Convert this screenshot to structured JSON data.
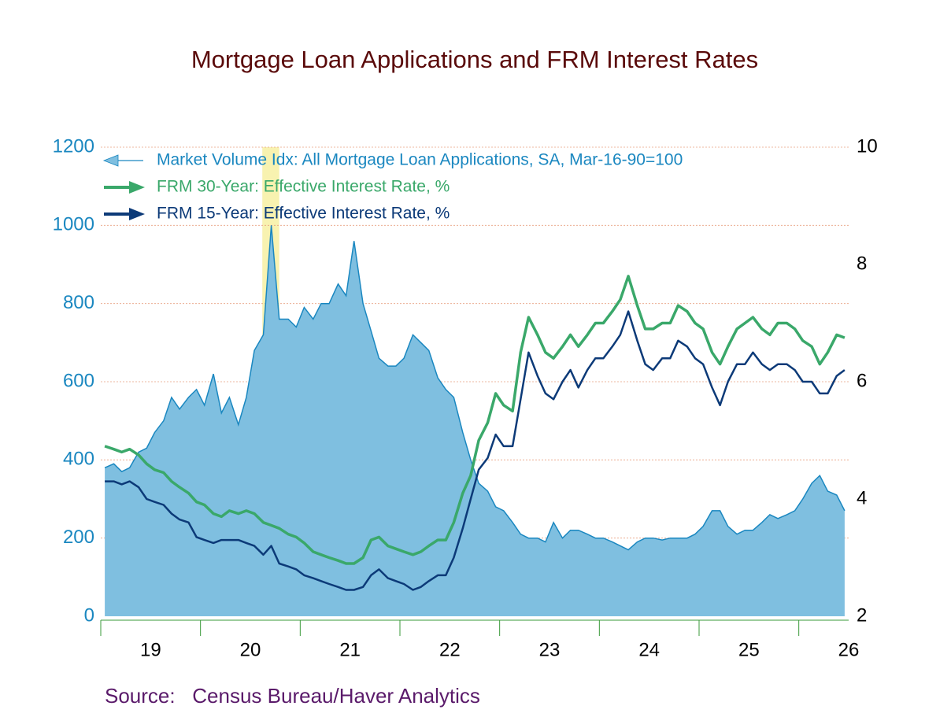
{
  "chart_data": {
    "type": "line-area",
    "title": "Mortgage Loan Applications and FRM Interest Rates",
    "source": "Source:   Census Bureau/Haver Analytics",
    "x": [
      2018.54,
      2018.63,
      2018.71,
      2018.79,
      2018.88,
      2018.96,
      2019.04,
      2019.13,
      2019.21,
      2019.29,
      2019.38,
      2019.46,
      2019.54,
      2019.63,
      2019.71,
      2019.79,
      2019.88,
      2019.96,
      2020.04,
      2020.13,
      2020.21,
      2020.29,
      2020.38,
      2020.46,
      2020.54,
      2020.63,
      2020.71,
      2020.79,
      2020.88,
      2020.96,
      2021.04,
      2021.13,
      2021.21,
      2021.29,
      2021.38,
      2021.46,
      2021.54,
      2021.63,
      2021.71,
      2021.79,
      2021.88,
      2021.96,
      2022.04,
      2022.13,
      2022.21,
      2022.29,
      2022.38,
      2022.46,
      2022.54,
      2022.63,
      2022.71,
      2022.79,
      2022.88,
      2022.96,
      2023.04,
      2023.13,
      2023.21,
      2023.29,
      2023.38,
      2023.46,
      2023.54,
      2023.63,
      2023.71,
      2023.79,
      2023.88,
      2023.96,
      2024.04,
      2024.13,
      2024.21,
      2024.29,
      2024.38,
      2024.46,
      2024.54,
      2024.63,
      2024.71,
      2024.79,
      2024.88,
      2024.96,
      2025.04,
      2025.13,
      2025.21,
      2025.29,
      2025.38,
      2025.46,
      2025.54,
      2025.63,
      2025.71,
      2025.79,
      2025.88,
      2025.96
    ],
    "series": [
      {
        "name": "Market Volume Idx: All Mortgage Loan Applications, SA, Mar-16-90=100",
        "color": "#1a87c0",
        "fill": "#7fbfe0",
        "axis": "y",
        "values": [
          380,
          390,
          370,
          380,
          420,
          430,
          470,
          500,
          560,
          530,
          560,
          580,
          540,
          620,
          520,
          560,
          490,
          560,
          680,
          720,
          1000,
          760,
          760,
          740,
          790,
          760,
          800,
          800,
          850,
          820,
          960,
          800,
          730,
          660,
          640,
          640,
          660,
          720,
          700,
          680,
          610,
          580,
          560,
          470,
          400,
          340,
          320,
          280,
          270,
          240,
          210,
          200,
          200,
          190,
          240,
          200,
          220,
          220,
          210,
          200,
          200,
          190,
          180,
          170,
          190,
          200,
          200,
          195,
          200,
          200,
          200,
          210,
          230,
          270,
          270,
          230,
          210,
          220,
          220,
          240,
          260,
          250,
          260,
          270,
          300,
          340,
          360,
          320,
          310,
          270
        ]
      },
      {
        "name": "FRM 30-Year: Effective Interest Rate, %",
        "color": "#3aa86a",
        "axis": "y2",
        "values": [
          4.9,
          4.85,
          4.8,
          4.85,
          4.75,
          4.6,
          4.5,
          4.45,
          4.3,
          4.2,
          4.1,
          3.95,
          3.9,
          3.75,
          3.7,
          3.8,
          3.75,
          3.8,
          3.75,
          3.6,
          3.55,
          3.5,
          3.4,
          3.35,
          3.25,
          3.1,
          3.05,
          3.0,
          2.95,
          2.9,
          2.9,
          3.0,
          3.3,
          3.35,
          3.2,
          3.15,
          3.1,
          3.05,
          3.1,
          3.2,
          3.3,
          3.3,
          3.6,
          4.1,
          4.4,
          5.0,
          5.3,
          5.8,
          5.6,
          5.5,
          6.5,
          7.1,
          6.8,
          6.5,
          6.4,
          6.6,
          6.8,
          6.6,
          6.8,
          7.0,
          7.0,
          7.2,
          7.4,
          7.8,
          7.3,
          6.9,
          6.9,
          7.0,
          7.0,
          7.3,
          7.2,
          7.0,
          6.9,
          6.5,
          6.3,
          6.6,
          6.9,
          7.0,
          7.1,
          6.9,
          6.8,
          7.0,
          7.0,
          6.9,
          6.7,
          6.6,
          6.3,
          6.5,
          6.8,
          6.75
        ]
      },
      {
        "name": "FRM 15-Year: Effective Interest Rate, %",
        "color": "#0c3a78",
        "axis": "y2",
        "values": [
          4.3,
          4.3,
          4.25,
          4.3,
          4.2,
          4.0,
          3.95,
          3.9,
          3.75,
          3.65,
          3.6,
          3.35,
          3.3,
          3.25,
          3.3,
          3.3,
          3.3,
          3.25,
          3.2,
          3.05,
          3.2,
          2.9,
          2.85,
          2.8,
          2.7,
          2.65,
          2.6,
          2.55,
          2.5,
          2.45,
          2.45,
          2.5,
          2.7,
          2.8,
          2.65,
          2.6,
          2.55,
          2.45,
          2.5,
          2.6,
          2.7,
          2.7,
          3.0,
          3.5,
          4.0,
          4.5,
          4.7,
          5.1,
          4.9,
          4.9,
          5.7,
          6.5,
          6.1,
          5.8,
          5.7,
          6.0,
          6.2,
          5.9,
          6.2,
          6.4,
          6.4,
          6.6,
          6.8,
          7.2,
          6.7,
          6.3,
          6.2,
          6.4,
          6.4,
          6.7,
          6.6,
          6.4,
          6.3,
          5.9,
          5.6,
          6.0,
          6.3,
          6.3,
          6.5,
          6.3,
          6.2,
          6.3,
          6.3,
          6.2,
          6.0,
          6.0,
          5.8,
          5.8,
          6.1,
          6.2
        ]
      }
    ],
    "recession": [
      2020.12,
      2020.29
    ],
    "recession_color": "#f8f2b0",
    "xlim": [
      2018.5,
      2026.0
    ],
    "xticks": [
      {
        "value": 2019,
        "label": "19"
      },
      {
        "value": 2020,
        "label": "20"
      },
      {
        "value": 2021,
        "label": "21"
      },
      {
        "value": 2022,
        "label": "22"
      },
      {
        "value": 2023,
        "label": "23"
      },
      {
        "value": 2024,
        "label": "24"
      },
      {
        "value": 2025,
        "label": "25"
      },
      {
        "value": 2026,
        "label": "26"
      }
    ],
    "ylim": [
      0,
      1200
    ],
    "yticks": [
      0,
      200,
      400,
      600,
      800,
      1000,
      1200
    ],
    "y2lim": [
      2,
      10
    ],
    "y2ticks": [
      2,
      4,
      6,
      8,
      10
    ],
    "grid": true
  }
}
